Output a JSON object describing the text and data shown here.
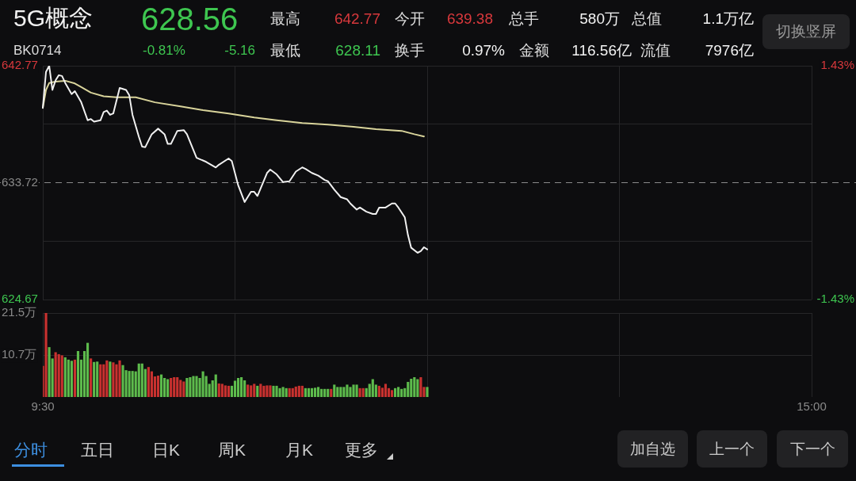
{
  "chart_data": [
    {
      "type": "other",
      "annotations": [
        "5G概念",
        "628.56",
        "BK0714",
        "-0.81%",
        "-5.16",
        "最高",
        "642.77",
        "今开",
        "639.38",
        "总手",
        "580万",
        "总值",
        "1.1万亿",
        "最低",
        "628.11",
        "换手",
        "0.97%",
        "金额",
        "116.56亿",
        "流值",
        "7976亿",
        "切换竖屏"
      ],
      "colors": [
        "#f2f2f2",
        "#3ec650",
        "#dddddd",
        "#3ec650",
        "#3ec650",
        "#dddddd",
        "#d8383c",
        "#dddddd",
        "#d8383c",
        "#dddddd",
        "#f2f2f2",
        "#dddddd",
        "#f2f2f2",
        "#dddddd",
        "#3ec650",
        "#dddddd",
        "#f2f2f2",
        "#dddddd",
        "#f2f2f2",
        "#dddddd",
        "#f2f2f2",
        "#9a9a9a"
      ]
    },
    {
      "type": "line",
      "marker": "none",
      "categories": [
        null,
        null,
        null,
        null,
        null,
        null,
        null,
        null,
        null,
        null,
        null,
        null,
        null,
        null,
        null,
        null,
        null,
        null,
        null,
        null,
        null,
        null,
        null,
        null,
        null,
        null,
        null,
        null,
        null,
        null,
        null,
        null,
        null,
        null,
        null,
        null,
        null,
        null,
        null,
        null,
        null,
        null,
        null,
        null,
        null,
        null,
        null,
        null,
        null,
        null,
        null,
        null,
        null,
        null,
        null,
        null,
        null,
        null,
        null,
        null,
        null,
        null,
        null,
        null,
        null,
        null,
        null,
        null,
        null,
        null,
        null,
        null,
        null,
        null,
        null,
        null,
        null,
        null,
        null,
        null,
        null,
        null,
        null,
        null,
        null,
        null,
        null,
        null,
        null,
        null,
        null,
        null,
        null,
        null,
        null,
        null,
        null,
        null,
        null,
        null,
        null,
        null,
        null,
        null,
        null,
        null,
        null,
        null,
        null,
        null,
        null,
        null,
        null,
        null,
        null,
        null,
        null,
        null,
        null,
        null,
        null,
        null,
        null,
        null,
        null,
        null,
        null,
        null,
        null,
        null,
        null,
        null,
        null,
        null,
        null,
        null,
        null,
        null,
        null,
        null,
        null,
        null,
        null,
        null,
        null,
        null,
        null,
        null,
        null,
        null,
        null,
        null,
        null,
        null,
        null,
        null,
        null,
        null,
        null,
        null,
        null,
        null,
        null,
        null,
        null,
        null,
        null,
        null,
        null,
        null,
        null,
        null,
        null,
        null,
        null,
        null,
        null,
        null,
        null,
        null,
        null,
        null,
        null,
        null,
        null,
        null,
        null,
        null,
        null,
        null,
        null,
        null,
        null,
        null,
        null,
        null,
        null,
        null,
        null,
        null,
        null,
        null,
        null,
        null,
        null,
        null,
        null,
        null,
        null,
        null,
        null,
        null,
        null,
        null,
        null,
        null,
        null,
        null,
        null,
        null,
        null,
        null,
        null,
        null,
        null,
        null,
        null,
        null,
        null,
        null,
        null,
        null,
        null,
        null,
        null,
        null,
        null,
        null,
        null,
        null,
        null
      ],
      "ylim": [
        624.67,
        642.77
      ],
      "yticks": [
        624.67,
        {
          "value": 629.195,
          "label": null
        },
        633.72,
        {
          "value": 638.245,
          "label": null
        },
        642.77
      ],
      "y2lim": [
        -1.43,
        1.43
      ],
      "y2ticks": [
        {
          "value": -1.43,
          "label": "-1.43%"
        },
        {
          "value": 1.43,
          "label": "1.43%"
        }
      ],
      "grid": true,
      "ref_lines": [
        {
          "axis": "y",
          "value": 633.72,
          "color": "#8a8a8a",
          "line_style": "dashed"
        }
      ],
      "series": [
        {
          "color": "#f0f0f0",
          "values": [
            639.51,
            642.3,
            642.77,
            640.9,
            641.65,
            642.04,
            641.98,
            641.44,
            null,
            640.58,
            640.8,
            null,
            639.94,
            null,
            638.55,
            638.65,
            638.44,
            null,
            638.55,
            639.19,
            639.3,
            638.97,
            639.08,
            null,
            641.05,
            null,
            640.9,
            640.48,
            638.97,
            null,
            637.26,
            636.51,
            636.47,
            null,
            637.47,
            null,
            637.9,
            null,
            637.47,
            636.72,
            636.72,
            null,
            637.73,
            null,
            637.79,
            637.47,
            null,
            null,
            635.65,
            635.54,
            null,
            635.33,
            null,
            null,
            634.9,
            635.11,
            null,
            null,
            635.59,
            635.39,
            null,
            633.51,
            null,
            632.22,
            null,
            633.01,
            633.01,
            632.69,
            null,
            null,
            634.47,
            634.73,
            null,
            634.36,
            null,
            633.76,
            null,
            633.83,
            null,
            634.58,
            null,
            634.9,
            634.79,
            null,
            634.47,
            null,
            634.26,
            null,
            633.93,
            633.83,
            null,
            633.18,
            null,
            632.6,
            null,
            632.43,
            632.11,
            null,
            631.64,
            631.79,
            null,
            631.47,
            null,
            631.3,
            631.3,
            631.79,
            null,
            631.79,
            null,
            632.11,
            632.11,
            631.79,
            null,
            631.04,
            629.65,
            628.68,
            null,
            628.29,
            628.42,
            628.72,
            628.56,
            null,
            null,
            null,
            null,
            null,
            null,
            null,
            null,
            null,
            null,
            null,
            null,
            null,
            null,
            null,
            null,
            null,
            null,
            null,
            null,
            null,
            null,
            null,
            null,
            null,
            null,
            null,
            null,
            null,
            null,
            null,
            null,
            null,
            null,
            null,
            null,
            null,
            null,
            null,
            null,
            null,
            null,
            null,
            null,
            null,
            null,
            null,
            null,
            null,
            null,
            null,
            null,
            null,
            null,
            null,
            null,
            null,
            null,
            null,
            null,
            null,
            null,
            null,
            null,
            null,
            null,
            null,
            null,
            null,
            null,
            null,
            null,
            null,
            null,
            null,
            null,
            null,
            null,
            null,
            null,
            null,
            null,
            null,
            null,
            null,
            null,
            null,
            null,
            null,
            null,
            null,
            null,
            null,
            null,
            null,
            null,
            null,
            null,
            null,
            null,
            null,
            null,
            null,
            null,
            null,
            null,
            null,
            null,
            null,
            null,
            null,
            null,
            null,
            null,
            null,
            null,
            null,
            null,
            null,
            null
          ]
        },
        {
          "color": "#d9d49b",
          "values": [
            639.51,
            640.9,
            641.44,
            null,
            641.55,
            null,
            null,
            641.61,
            null,
            null,
            641.4,
            null,
            641.12,
            null,
            null,
            640.69,
            null,
            null,
            null,
            640.41,
            null,
            null,
            null,
            640.33,
            null,
            null,
            null,
            null,
            null,
            640.33,
            null,
            null,
            null,
            null,
            null,
            639.94,
            null,
            null,
            null,
            null,
            null,
            null,
            null,
            639.62,
            null,
            null,
            null,
            null,
            null,
            null,
            639.34,
            null,
            null,
            null,
            null,
            null,
            null,
            null,
            639.08,
            null,
            null,
            null,
            null,
            null,
            null,
            null,
            638.76,
            null,
            null,
            null,
            null,
            null,
            null,
            638.55,
            null,
            null,
            null,
            null,
            null,
            null,
            null,
            638.33,
            null,
            null,
            null,
            null,
            null,
            null,
            null,
            638.22,
            null,
            null,
            null,
            null,
            null,
            null,
            null,
            638.05,
            null,
            null,
            null,
            null,
            null,
            null,
            637.86,
            null,
            null,
            null,
            null,
            null,
            null,
            null,
            637.73,
            null,
            null,
            null,
            637.47,
            null,
            null,
            637.3,
            null,
            null,
            null,
            null,
            null,
            null,
            null,
            null,
            null,
            null,
            null,
            null,
            null,
            null,
            null,
            null,
            null,
            null,
            null,
            null,
            null,
            null,
            null,
            null,
            null,
            null,
            null,
            null,
            null,
            null,
            null,
            null,
            null,
            null,
            null,
            null,
            null,
            null,
            null,
            null,
            null,
            null,
            null,
            null,
            null,
            null,
            null,
            null,
            null,
            null,
            null,
            null,
            null,
            null,
            null,
            null,
            null,
            null,
            null,
            null,
            null,
            null,
            null,
            null,
            null,
            null,
            null,
            null,
            null,
            null,
            null,
            null,
            null,
            null,
            null,
            null,
            null,
            null,
            null,
            null,
            null,
            null,
            null,
            null,
            null,
            null,
            null,
            null,
            null,
            null,
            null,
            null,
            null,
            null,
            null,
            null,
            null,
            null,
            null,
            null,
            null,
            null,
            null,
            null,
            null,
            null,
            null,
            null,
            null,
            null,
            null,
            null,
            null,
            null,
            null,
            null,
            null,
            null,
            null,
            null,
            null
          ]
        }
      ]
    },
    {
      "type": "bar",
      "categories": [
        "9:30",
        null,
        null,
        null,
        null,
        null,
        null,
        null,
        null,
        null,
        null,
        null,
        null,
        null,
        null,
        null,
        null,
        null,
        null,
        null,
        null,
        null,
        null,
        null,
        null,
        null,
        null,
        null,
        null,
        null,
        null,
        null,
        null,
        null,
        null,
        null,
        null,
        null,
        null,
        null,
        null,
        null,
        null,
        null,
        null,
        null,
        null,
        null,
        null,
        null,
        null,
        null,
        null,
        null,
        null,
        null,
        null,
        null,
        null,
        null,
        null,
        null,
        null,
        null,
        null,
        null,
        null,
        null,
        null,
        null,
        null,
        null,
        null,
        null,
        null,
        null,
        null,
        null,
        null,
        null,
        null,
        null,
        null,
        null,
        null,
        null,
        null,
        null,
        null,
        null,
        null,
        null,
        null,
        null,
        null,
        null,
        null,
        null,
        null,
        null,
        null,
        null,
        null,
        null,
        null,
        null,
        null,
        null,
        null,
        null,
        null,
        null,
        null,
        null,
        null,
        null,
        null,
        null,
        null,
        null,
        null,
        null,
        null,
        null,
        null,
        null,
        null,
        null,
        null,
        null,
        null,
        null,
        null,
        null,
        null,
        null,
        null,
        null,
        null,
        null,
        null,
        null,
        null,
        null,
        null,
        null,
        null,
        null,
        null,
        null,
        null,
        null,
        null,
        null,
        null,
        null,
        null,
        null,
        null,
        null,
        null,
        null,
        null,
        null,
        null,
        null,
        null,
        null,
        null,
        null,
        null,
        null,
        null,
        null,
        null,
        null,
        null,
        null,
        null,
        null,
        null,
        null,
        null,
        null,
        null,
        null,
        null,
        null,
        null,
        null,
        null,
        null,
        null,
        null,
        null,
        null,
        null,
        null,
        null,
        null,
        null,
        null,
        null,
        null,
        null,
        null,
        null,
        null,
        null,
        null,
        null,
        null,
        null,
        null,
        null,
        null,
        null,
        null,
        null,
        null,
        null,
        null,
        null,
        null,
        null,
        null,
        null,
        null,
        null,
        null,
        null,
        null,
        null,
        null,
        null,
        null,
        null,
        null,
        null,
        null,
        "15:00"
      ],
      "ylim": [
        0,
        21.5
      ],
      "yticks": [
        {
          "value": 10.7,
          "label": "10.7万"
        },
        {
          "value": 21.5,
          "label": "21.5万"
        }
      ],
      "grid": true,
      "values": [
        7.9,
        21.5,
        12.7,
        9.8,
        11.4,
        10.9,
        10.6,
        10.1,
        9.5,
        9.2,
        9.5,
        11.7,
        9.5,
        11.7,
        13.8,
        9.8,
        8.9,
        9.0,
        8.3,
        8.3,
        9.3,
        9.0,
        8.8,
        8.3,
        9.3,
        8.1,
        6.8,
        6.6,
        6.6,
        6.5,
        8.5,
        8.5,
        7.1,
        7.6,
        6.5,
        5.2,
        5.4,
        5.7,
        4.8,
        4.5,
        4.8,
        5.0,
        5.0,
        4.3,
        3.9,
        4.8,
        5.0,
        5.3,
        5.3,
        4.8,
        6.5,
        5.3,
        3.3,
        4.2,
        5.7,
        3.4,
        3.3,
        2.9,
        2.8,
        2.8,
        4.1,
        4.8,
        5.0,
        4.2,
        3.1,
        2.9,
        3.3,
        2.8,
        3.3,
        2.8,
        2.9,
        2.9,
        2.8,
        2.8,
        2.2,
        2.5,
        2.2,
        2.2,
        2.2,
        2.6,
        2.8,
        2.8,
        2.2,
        2.2,
        2.2,
        2.3,
        2.5,
        2.0,
        2.0,
        2.0,
        2.0,
        3.1,
        2.5,
        2.5,
        2.5,
        3.1,
        2.5,
        3.1,
        3.1,
        2.2,
        2.2,
        2.2,
        3.3,
        4.5,
        3.1,
        2.8,
        2.3,
        3.3,
        2.2,
        1.7,
        2.2,
        2.5,
        2.0,
        2.2,
        3.8,
        4.6,
        5.0,
        4.5,
        5.0,
        2.5,
        2.5,
        null,
        null,
        null,
        null,
        null,
        null,
        null,
        null,
        null,
        null,
        null,
        null,
        null,
        null,
        null,
        null,
        null,
        null,
        null,
        null,
        null,
        null,
        null,
        null,
        null,
        null,
        null,
        null,
        null,
        null,
        null,
        null,
        null,
        null,
        null,
        null,
        null,
        null,
        null,
        null,
        null,
        null,
        null,
        null,
        null,
        null,
        null,
        null,
        null,
        null,
        null,
        null,
        null,
        null,
        null,
        null,
        null,
        null,
        null,
        null,
        null,
        null,
        null,
        null,
        null,
        null,
        null,
        null,
        null,
        null,
        null,
        null,
        null,
        null,
        null,
        null,
        null,
        null,
        null,
        null,
        null,
        null,
        null,
        null,
        null,
        null,
        null,
        null,
        null,
        null,
        null,
        null,
        null,
        null,
        null,
        null,
        null,
        null,
        null,
        null,
        null,
        null,
        null,
        null,
        null,
        null,
        null,
        null,
        null,
        null,
        null,
        null,
        null,
        null,
        null,
        null,
        null,
        null,
        null,
        null
      ],
      "colors": [
        "#c8312f",
        "#c8312f",
        "#5dbb4c",
        "#5dbb4c",
        "#c8312f",
        "#c8312f",
        "#c8312f",
        "#5dbb4c",
        "#5dbb4c",
        "#5dbb4c",
        "#c8312f",
        "#5dbb4c",
        "#5dbb4c",
        "#5dbb4c",
        "#5dbb4c",
        "#c8312f",
        "#5dbb4c",
        "#5dbb4c",
        "#c8312f",
        "#c8312f",
        "#c8312f",
        "#5dbb4c",
        "#c8312f",
        "#c8312f",
        "#c8312f",
        "#5dbb4c",
        "#5dbb4c",
        "#5dbb4c",
        "#5dbb4c",
        "#5dbb4c",
        "#5dbb4c",
        "#5dbb4c",
        "#5dbb4c",
        "#c8312f",
        "#c8312f",
        "#c8312f",
        "#c8312f",
        "#5dbb4c",
        "#5dbb4c",
        "#5dbb4c",
        "#c8312f",
        "#c8312f",
        "#c8312f",
        "#c8312f",
        "#c8312f",
        "#5dbb4c",
        "#5dbb4c",
        "#5dbb4c",
        "#5dbb4c",
        "#5dbb4c",
        "#5dbb4c",
        "#5dbb4c",
        "#5dbb4c",
        "#5dbb4c",
        "#5dbb4c",
        "#c8312f",
        "#c8312f",
        "#c8312f",
        "#c8312f",
        "#5dbb4c",
        "#5dbb4c",
        "#5dbb4c",
        "#5dbb4c",
        "#5dbb4c",
        "#c8312f",
        "#c8312f",
        "#c8312f",
        "#5dbb4c",
        "#c8312f",
        "#c8312f",
        "#c8312f",
        "#c8312f",
        "#5dbb4c",
        "#5dbb4c",
        "#5dbb4c",
        "#5dbb4c",
        "#5dbb4c",
        "#c8312f",
        "#c8312f",
        "#c8312f",
        "#c8312f",
        "#c8312f",
        "#5dbb4c",
        "#5dbb4c",
        "#5dbb4c",
        "#5dbb4c",
        "#5dbb4c",
        "#5dbb4c",
        "#5dbb4c",
        "#5dbb4c",
        "#c8312f",
        "#5dbb4c",
        "#5dbb4c",
        "#5dbb4c",
        "#5dbb4c",
        "#5dbb4c",
        "#5dbb4c",
        "#5dbb4c",
        "#5dbb4c",
        "#c8312f",
        "#c8312f",
        "#5dbb4c",
        "#5dbb4c",
        "#5dbb4c",
        "#5dbb4c",
        "#c8312f",
        "#c8312f",
        "#c8312f",
        "#c8312f",
        "#c8312f",
        "#5dbb4c",
        "#5dbb4c",
        "#5dbb4c",
        "#5dbb4c",
        "#5dbb4c",
        "#5dbb4c",
        "#5dbb4c",
        "#5dbb4c",
        "#c8312f",
        "#c8312f",
        "#5dbb4c",
        null,
        null,
        null,
        null,
        null,
        null,
        null,
        null,
        null,
        null,
        null,
        null,
        null,
        null,
        null,
        null,
        null,
        null,
        null,
        null,
        null,
        null,
        null,
        null,
        null,
        null,
        null,
        null,
        null,
        null,
        null,
        null,
        null,
        null,
        null,
        null,
        null,
        null,
        null,
        null,
        null,
        null,
        null,
        null,
        null,
        null,
        null,
        null,
        null,
        null,
        null,
        null,
        null,
        null,
        null,
        null,
        null,
        null,
        null,
        null,
        null,
        null,
        null,
        null,
        null,
        null,
        null,
        null,
        null,
        null,
        null,
        null,
        null,
        null,
        null,
        null,
        null,
        null,
        null,
        null,
        null,
        null,
        null,
        null,
        null,
        null,
        null,
        null,
        null,
        null,
        null,
        null,
        null,
        null,
        null,
        null,
        null,
        null,
        null,
        null,
        null,
        null,
        null,
        null,
        null,
        null,
        null,
        null,
        null,
        null,
        null,
        null,
        null,
        null,
        null,
        null,
        null,
        null,
        null,
        null
      ]
    },
    {
      "type": "other",
      "annotations": [
        "分时",
        "五日",
        "日K",
        "周K",
        "月K",
        "更多",
        "加自选",
        "上一个",
        "下一个"
      ],
      "colors": [
        "#3d8fe0",
        "#cccccc",
        "#cccccc",
        "#cccccc",
        "#cccccc",
        "#cccccc",
        "#cccccc",
        "#cccccc",
        "#cccccc"
      ]
    }
  ]
}
